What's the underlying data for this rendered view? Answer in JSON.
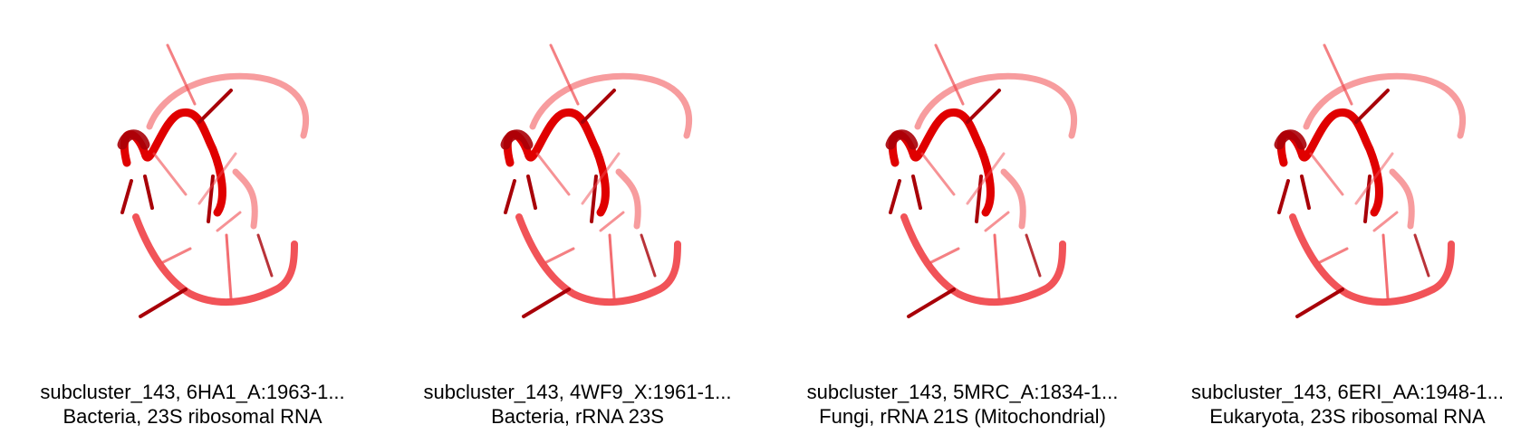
{
  "colors": {
    "strand_light": "#f04a4f",
    "strand_strong": "#e00000",
    "strand_dark": "#a80008"
  },
  "panels": [
    {
      "title": "subcluster_143, 6HA1_A:1963-1...",
      "subtitle": "Bacteria, 23S ribosomal RNA",
      "image": "rna-structure-render"
    },
    {
      "title": "subcluster_143, 4WF9_X:1961-1...",
      "subtitle": "Bacteria, rRNA 23S",
      "image": "rna-structure-render"
    },
    {
      "title": "subcluster_143, 5MRC_A:1834-1...",
      "subtitle": "Fungi, rRNA 21S (Mitochondrial)",
      "image": "rna-structure-render"
    },
    {
      "title": "subcluster_143, 6ERI_AA:1948-1...",
      "subtitle": "Eukaryota, 23S ribosomal RNA",
      "image": "rna-structure-render"
    }
  ]
}
